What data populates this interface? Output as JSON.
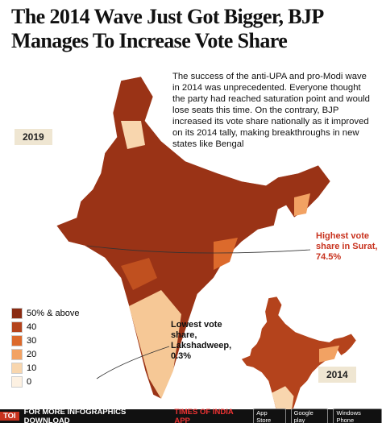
{
  "header": {
    "title_lines": [
      "The 2014 Wave Just Got Bigger, BJP",
      "Manages To Increase Vote Share"
    ]
  },
  "intro": "The success of the anti-UPA and pro-Modi wave in 2014 was unprecedented. Everyone thought the party had reached saturation point and would lose seats this time. On the contrary, BJP increased its vote share nationally as it improved on its 2014 tally, making breakthroughs in new states like Bengal",
  "maps": [
    {
      "label": "2019"
    },
    {
      "label": "2014"
    }
  ],
  "legend": {
    "items": [
      {
        "label": "50% & above",
        "color": "#8a2b12"
      },
      {
        "label": "40",
        "color": "#b4431c"
      },
      {
        "label": "30",
        "color": "#dc6a2c"
      },
      {
        "label": "20",
        "color": "#f2a263"
      },
      {
        "label": "10",
        "color": "#f8d6ae"
      },
      {
        "label": "0",
        "color": "#fdf1e2"
      }
    ]
  },
  "annotations": [
    {
      "text": "Highest vote share in Surat, 74.5%"
    },
    {
      "text": "Lowest vote share, Lakshadweep, 0.3%"
    }
  ],
  "footer": {
    "brand": "TOI",
    "text": "FOR MORE INFOGRAPHICS DOWNLOAD",
    "app": "TIMES OF INDIA APP",
    "badges": [
      "App Store",
      "Google play",
      "Windows Phone"
    ]
  }
}
